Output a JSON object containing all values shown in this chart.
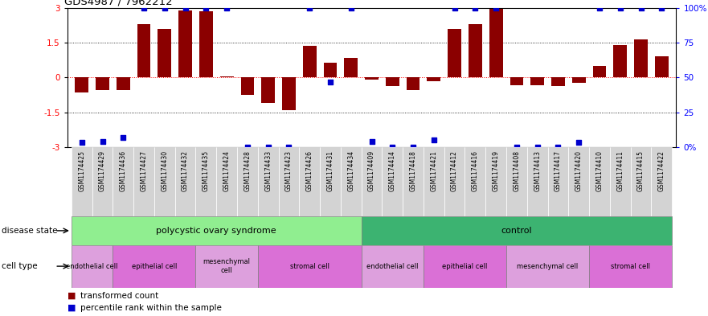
{
  "title": "GDS4987 / 7962212",
  "samples": [
    "GSM1174425",
    "GSM1174429",
    "GSM1174436",
    "GSM1174427",
    "GSM1174430",
    "GSM1174432",
    "GSM1174435",
    "GSM1174424",
    "GSM1174428",
    "GSM1174433",
    "GSM1174423",
    "GSM1174426",
    "GSM1174431",
    "GSM1174434",
    "GSM1174409",
    "GSM1174414",
    "GSM1174418",
    "GSM1174421",
    "GSM1174412",
    "GSM1174416",
    "GSM1174419",
    "GSM1174408",
    "GSM1174413",
    "GSM1174417",
    "GSM1174420",
    "GSM1174410",
    "GSM1174411",
    "GSM1174415",
    "GSM1174422"
  ],
  "bar_values": [
    -0.65,
    -0.55,
    -0.55,
    2.3,
    2.1,
    2.9,
    2.85,
    0.05,
    -0.75,
    -1.1,
    -1.4,
    1.35,
    0.65,
    0.85,
    -0.1,
    -0.38,
    -0.55,
    -0.15,
    2.1,
    2.3,
    3.0,
    -0.35,
    -0.35,
    -0.38,
    -0.22,
    0.5,
    1.4,
    1.65,
    0.9
  ],
  "percentile_values": [
    -2.8,
    -2.75,
    -2.6,
    3.0,
    3.0,
    3.0,
    3.0,
    3.0,
    -3.0,
    -3.0,
    -3.0,
    3.0,
    -0.2,
    3.0,
    -2.75,
    -3.0,
    -3.0,
    -2.7,
    3.0,
    3.0,
    3.0,
    -3.0,
    -3.0,
    -3.0,
    -2.8,
    3.0,
    3.0,
    3.0,
    3.0
  ],
  "bar_color": "#8B0000",
  "dot_color": "#0000CD",
  "ylim": [
    -3,
    3
  ],
  "yticks_left": [
    -3,
    -1.5,
    0,
    1.5,
    3
  ],
  "ytick_labels_left": [
    "-3",
    "-1.5",
    "0",
    "1.5",
    "3"
  ],
  "ytick_labels_right": [
    "0%",
    "25",
    "50",
    "75",
    "100%"
  ],
  "disease_state_polycystic": "polycystic ovary syndrome",
  "disease_state_control": "control",
  "disease_state_label": "disease state",
  "cell_type_label": "cell type",
  "cell_type_groups": [
    {
      "label": "endothelial cell",
      "start": 0,
      "end": 2,
      "color": "#DDA0DD"
    },
    {
      "label": "epithelial cell",
      "start": 2,
      "end": 6,
      "color": "#DA70D6"
    },
    {
      "label": "mesenchymal\ncell",
      "start": 6,
      "end": 9,
      "color": "#DDA0DD"
    },
    {
      "label": "stromal cell",
      "start": 9,
      "end": 14,
      "color": "#DA70D6"
    },
    {
      "label": "endothelial cell",
      "start": 14,
      "end": 17,
      "color": "#DDA0DD"
    },
    {
      "label": "epithelial cell",
      "start": 17,
      "end": 21,
      "color": "#DA70D6"
    },
    {
      "label": "mesenchymal cell",
      "start": 21,
      "end": 25,
      "color": "#DDA0DD"
    },
    {
      "label": "stromal cell",
      "start": 25,
      "end": 29,
      "color": "#DA70D6"
    }
  ],
  "disease_polycystic_range": [
    0,
    14
  ],
  "disease_control_range": [
    14,
    29
  ],
  "disease_polycystic_color": "#90EE90",
  "disease_control_color": "#3CB371",
  "xticklabel_bg": "#D3D3D3",
  "legend_items": [
    {
      "color": "#8B0000",
      "label": "transformed count"
    },
    {
      "color": "#0000CD",
      "label": "percentile rank within the sample"
    }
  ],
  "fig_width": 8.81,
  "fig_height": 3.93,
  "dpi": 100
}
